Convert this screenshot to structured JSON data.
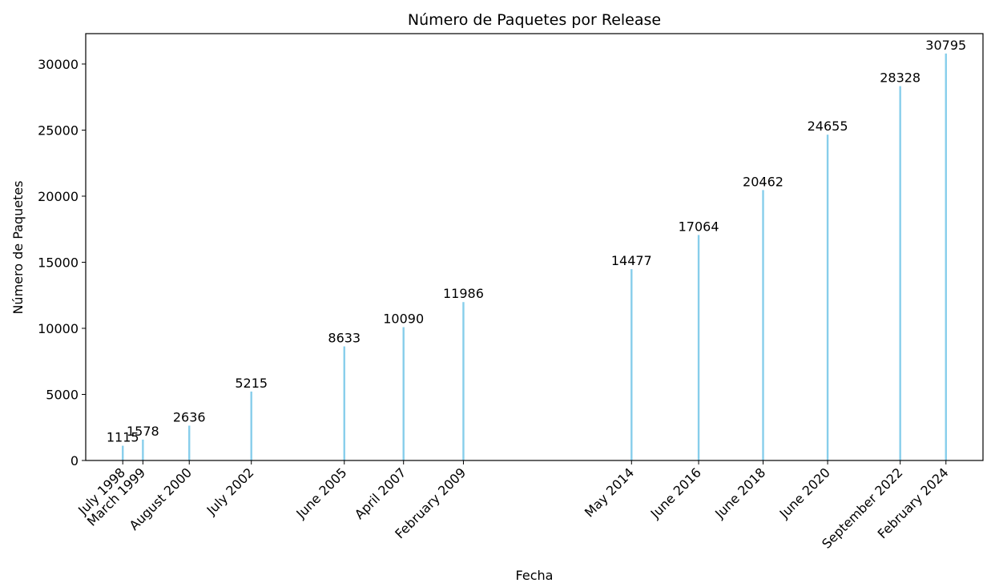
{
  "chart_data": {
    "type": "bar",
    "title": "Número de Paquetes por Release",
    "xlabel": "Fecha",
    "ylabel": "Número de Paquetes",
    "x_axis": "date",
    "ylim": [
      0,
      32300
    ],
    "y_ticks": [
      0,
      5000,
      10000,
      15000,
      20000,
      25000,
      30000
    ],
    "bar_color": "#87ceeb",
    "grid": false,
    "points": [
      {
        "date": "1998-07-24",
        "label": "July 1998",
        "value": 1115
      },
      {
        "date": "1999-03-09",
        "label": "March 1999",
        "value": 1578
      },
      {
        "date": "2000-08-15",
        "label": "August 2000",
        "value": 2636
      },
      {
        "date": "2002-07-19",
        "label": "July 2002",
        "value": 5215
      },
      {
        "date": "2005-06-06",
        "label": "June 2005",
        "value": 8633
      },
      {
        "date": "2007-04-08",
        "label": "April 2007",
        "value": 10090
      },
      {
        "date": "2009-02-14",
        "label": "February 2009",
        "value": 11986
      },
      {
        "date": "2014-05-03",
        "label": "May 2014",
        "value": 14477
      },
      {
        "date": "2016-06-01",
        "label": "June 2016",
        "value": 17064
      },
      {
        "date": "2018-06-01",
        "label": "June 2018",
        "value": 20462
      },
      {
        "date": "2020-06-01",
        "label": "June 2020",
        "value": 24655
      },
      {
        "date": "2022-09-01",
        "label": "September 2022",
        "value": 28328
      },
      {
        "date": "2024-02-01",
        "label": "February 2024",
        "value": 30795
      }
    ]
  }
}
